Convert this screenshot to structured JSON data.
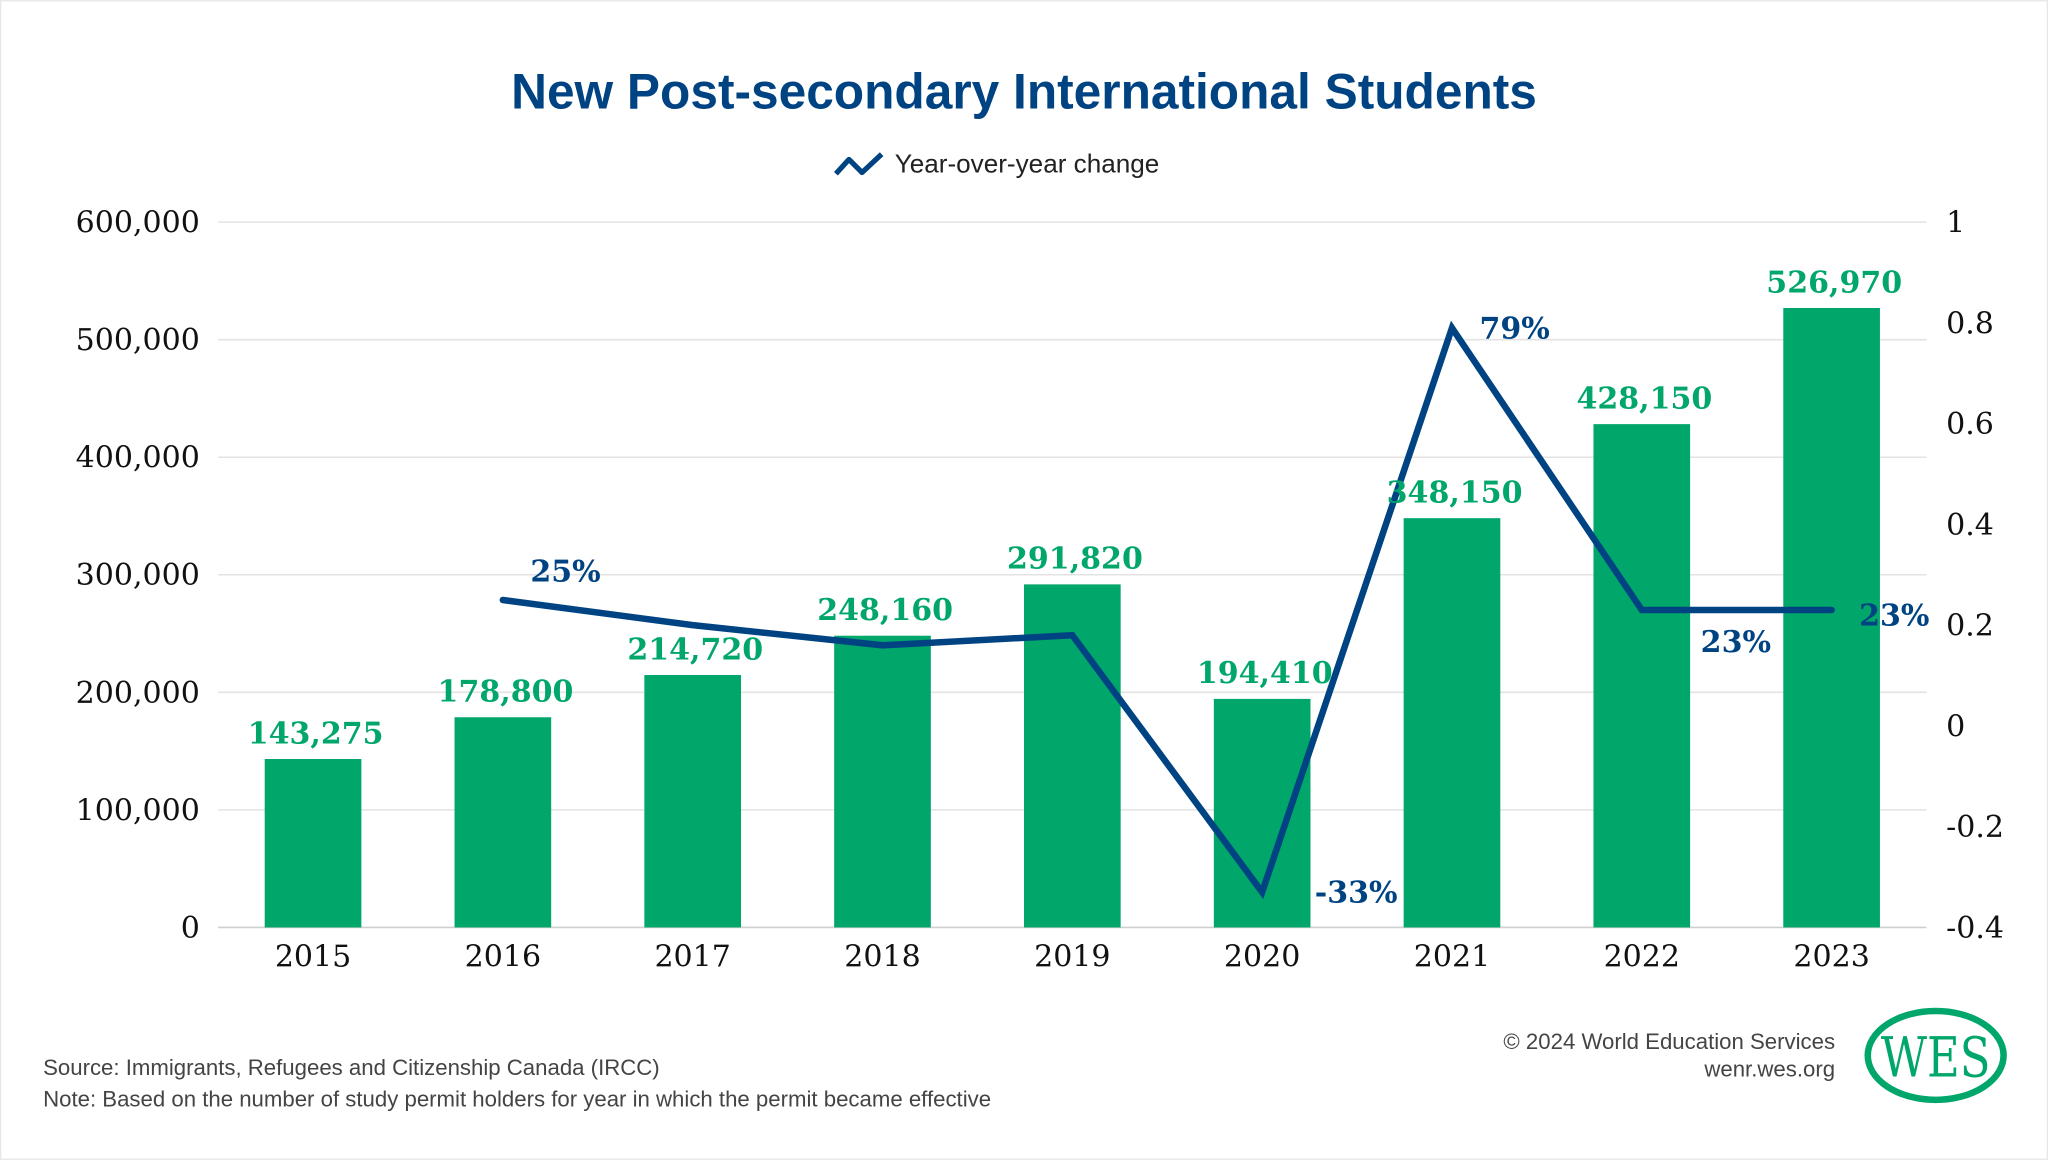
{
  "chart_data": {
    "type": "bar+line",
    "title": "New Post-secondary International Students",
    "legend": {
      "label": "Year-over-year change",
      "placement": "top-center"
    },
    "categories": [
      "2015",
      "2016",
      "2017",
      "2018",
      "2019",
      "2020",
      "2021",
      "2022",
      "2023"
    ],
    "bars": {
      "values": [
        143275,
        178800,
        214720,
        248160,
        291820,
        194410,
        348150,
        428150,
        526970
      ],
      "labels": [
        "143,275",
        "178,800",
        "214,720",
        "248,160",
        "291,820",
        "194,410",
        "348,150",
        "428,150",
        "526,970"
      ],
      "color": "#00A66A"
    },
    "line": {
      "name": "Year-over-year change",
      "values": [
        null,
        0.25,
        0.2,
        0.16,
        0.18,
        -0.33,
        0.79,
        0.23,
        0.23
      ],
      "labels": [
        "",
        "25%",
        "",
        "",
        "",
        "-33%",
        "79%",
        "23%",
        "23%"
      ],
      "color": "#004383"
    },
    "y_left": {
      "range": [
        0,
        600000
      ],
      "ticks": [
        "0",
        "100,000",
        "200,000",
        "300,000",
        "400,000",
        "500,000",
        "600,000"
      ]
    },
    "y_right": {
      "range": [
        -0.4,
        1
      ],
      "ticks": [
        "-0.4",
        "-0.2",
        "0",
        "0.2",
        "0.4",
        "0.6",
        "0.8",
        "1"
      ]
    },
    "grid": true
  },
  "footer": {
    "source": "Source: Immigrants, Refugees and Citizenship Canada (IRCC)",
    "note": "Note: Based on the number of study permit holders for year in which the permit became effective",
    "copyright": "© 2024 World Education Services",
    "website": "wenr.wes.org",
    "logo_text": "WES"
  },
  "colors": {
    "title": "#004383",
    "bar": "#00A66A",
    "line": "#004383",
    "grid": "#d9d9d9"
  }
}
